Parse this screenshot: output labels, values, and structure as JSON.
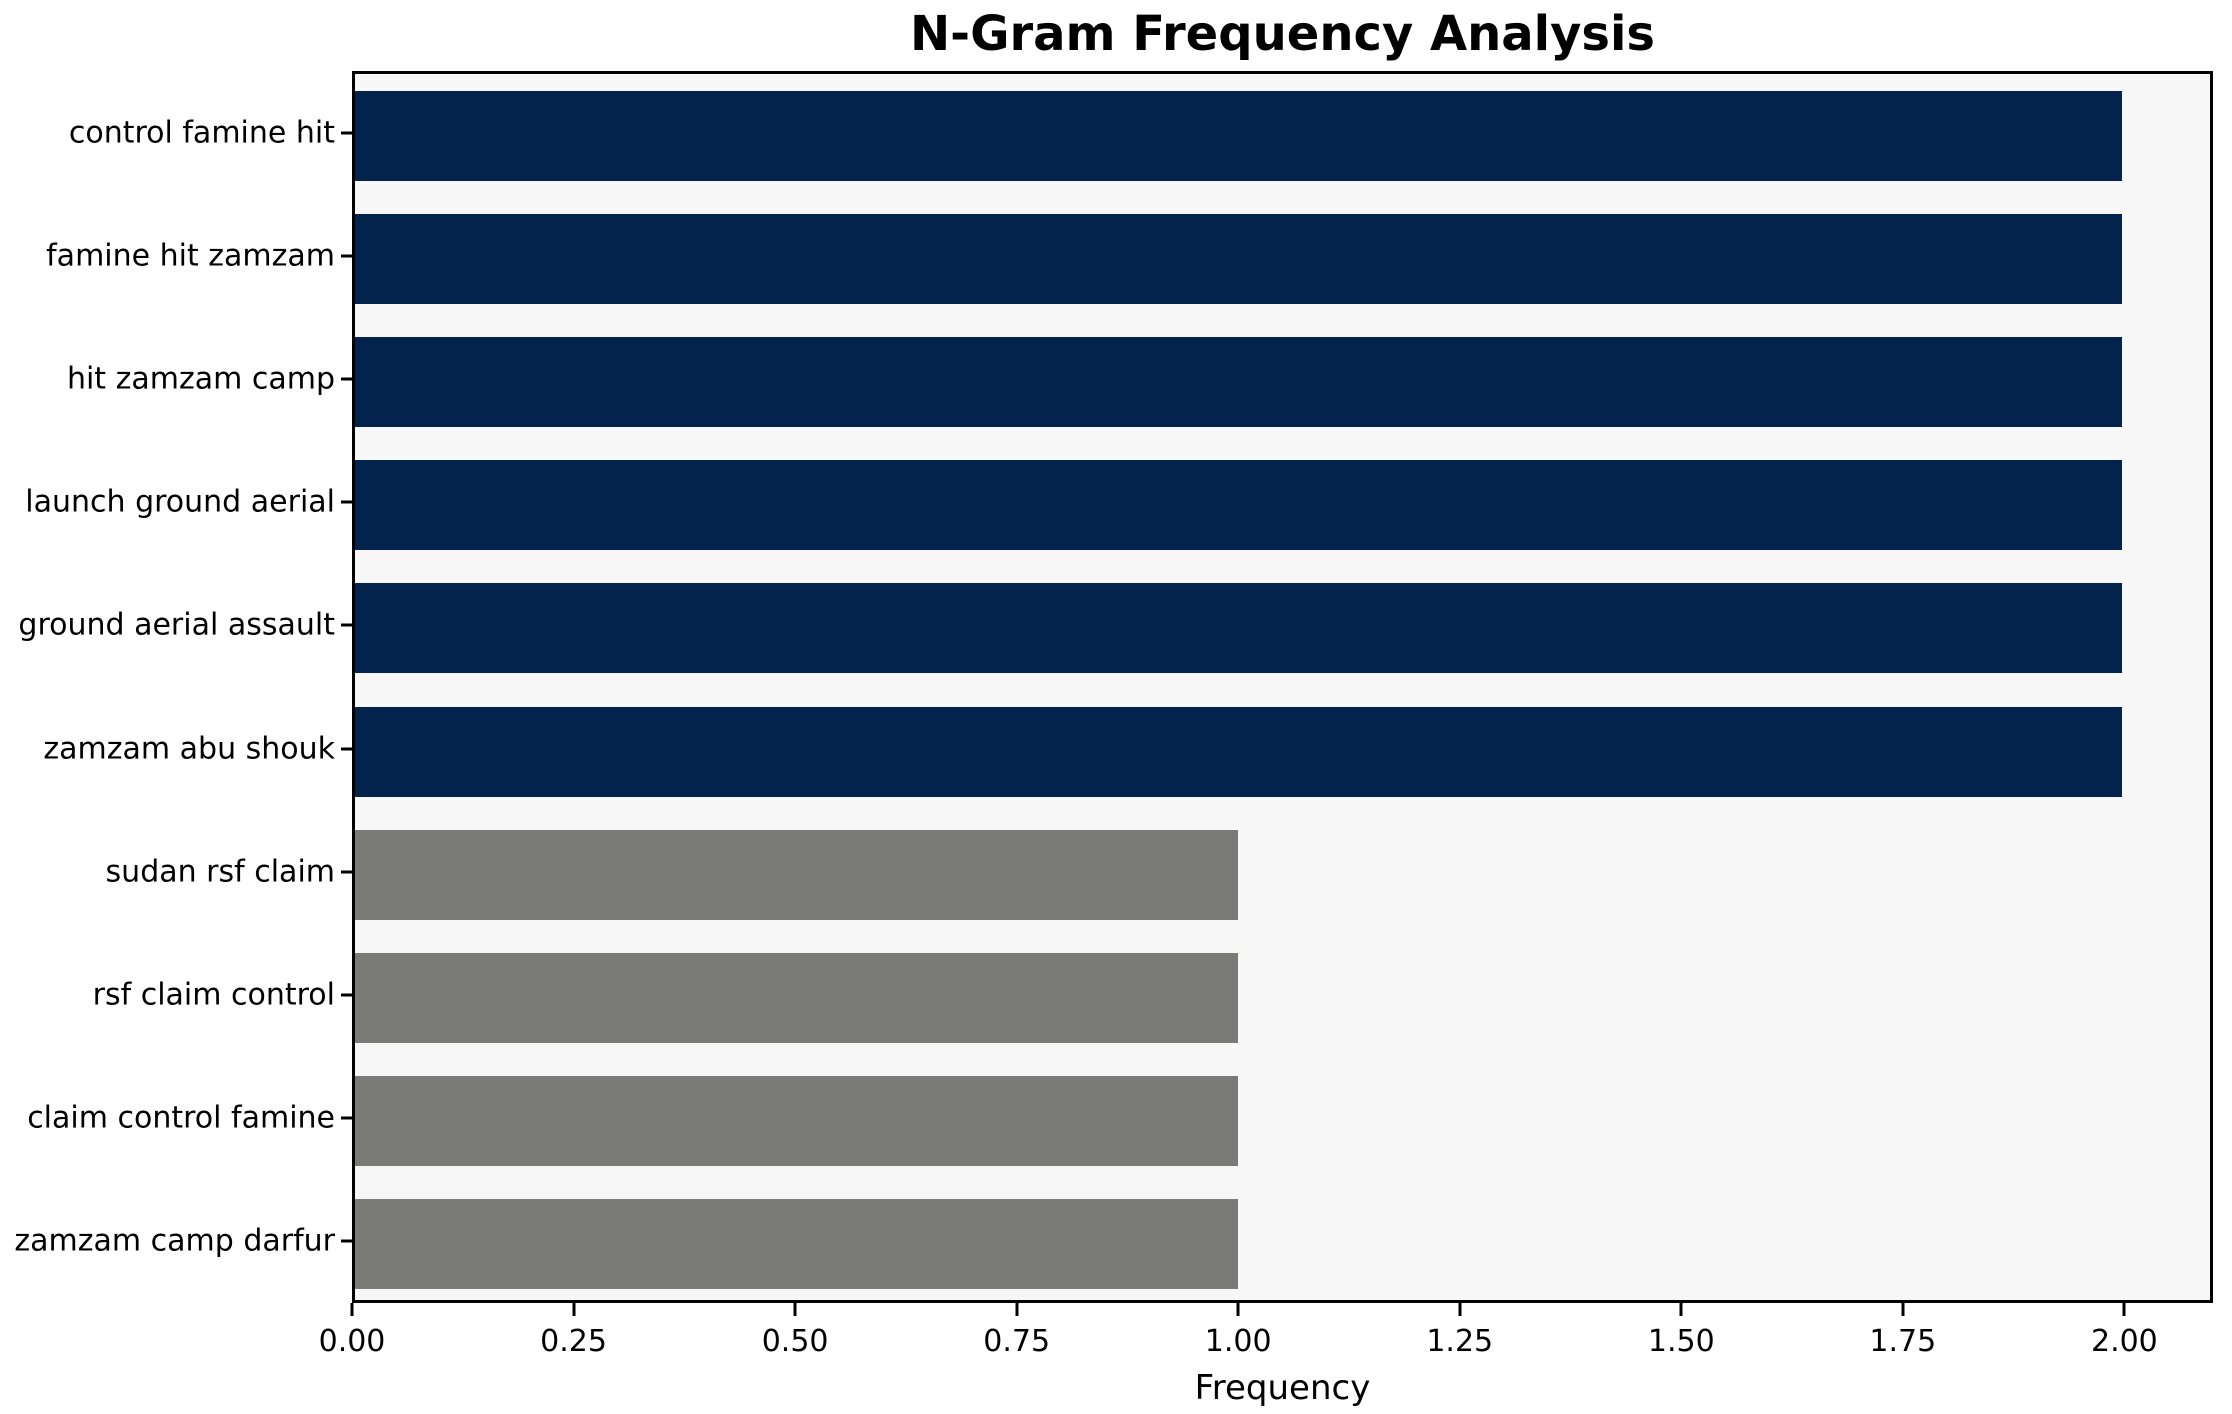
{
  "chart_data": {
    "type": "bar",
    "orientation": "horizontal",
    "title": "N-Gram Frequency Analysis",
    "xlabel": "Frequency",
    "ylabel": "",
    "categories": [
      "control famine hit",
      "famine hit zamzam",
      "hit zamzam camp",
      "launch ground aerial",
      "ground aerial assault",
      "zamzam abu shouk",
      "sudan rsf claim",
      "rsf claim control",
      "claim control famine",
      "zamzam camp darfur"
    ],
    "values": [
      2,
      2,
      2,
      2,
      2,
      2,
      1,
      1,
      1,
      1
    ],
    "bar_colors": [
      "#03234c",
      "#03234c",
      "#03234c",
      "#03234c",
      "#03234c",
      "#03234c",
      "#7a7a77",
      "#7a7a77",
      "#7a7a77",
      "#7a7a77"
    ],
    "xlim": [
      0,
      2.1
    ],
    "xticks": [
      0,
      0.25,
      0.5,
      0.75,
      1.0,
      1.25,
      1.5,
      1.75,
      2.0
    ],
    "xtick_labels": [
      "0.00",
      "0.25",
      "0.50",
      "0.75",
      "1.00",
      "1.25",
      "1.50",
      "1.75",
      "2.00"
    ],
    "grid": false,
    "legend": "none"
  },
  "colors": {
    "bar_high": "#03234c",
    "bar_low": "#7a7a77",
    "plot_background": "#f7f7f7",
    "figure_background": "#ffffff",
    "axis": "#000000",
    "text": "#000000"
  }
}
